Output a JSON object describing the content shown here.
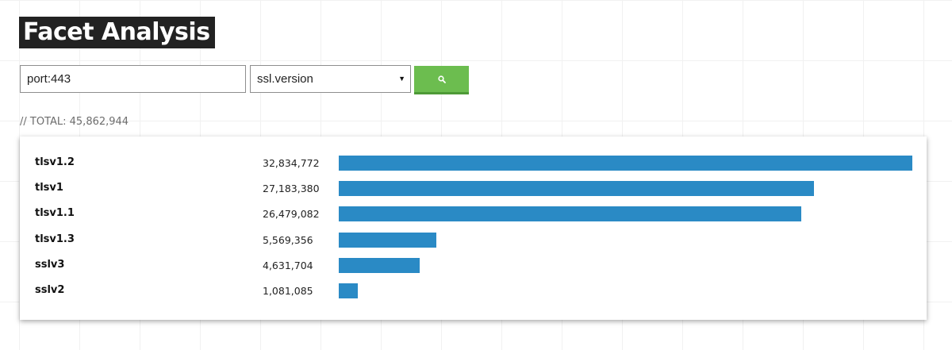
{
  "page": {
    "title": "Facet Analysis"
  },
  "search": {
    "query_value": "port:443",
    "facet_selected": "ssl.version",
    "button_icon": "search-icon"
  },
  "summary": {
    "total_text": "// TOTAL: 45,862,944"
  },
  "colors": {
    "bar": "#2a8ac5",
    "button": "#6cbd4f",
    "title_bg": "#222222"
  },
  "chart_data": {
    "type": "bar",
    "orientation": "horizontal",
    "categories": [
      "tlsv1.2",
      "tlsv1",
      "tlsv1.1",
      "tlsv1.3",
      "sslv3",
      "sslv2"
    ],
    "values": [
      32834772,
      27183380,
      26479082,
      5569356,
      4631704,
      1081085
    ],
    "value_labels": [
      "32,834,772",
      "27,183,380",
      "26,479,082",
      "5,569,356",
      "4,631,704",
      "1,081,085"
    ]
  }
}
